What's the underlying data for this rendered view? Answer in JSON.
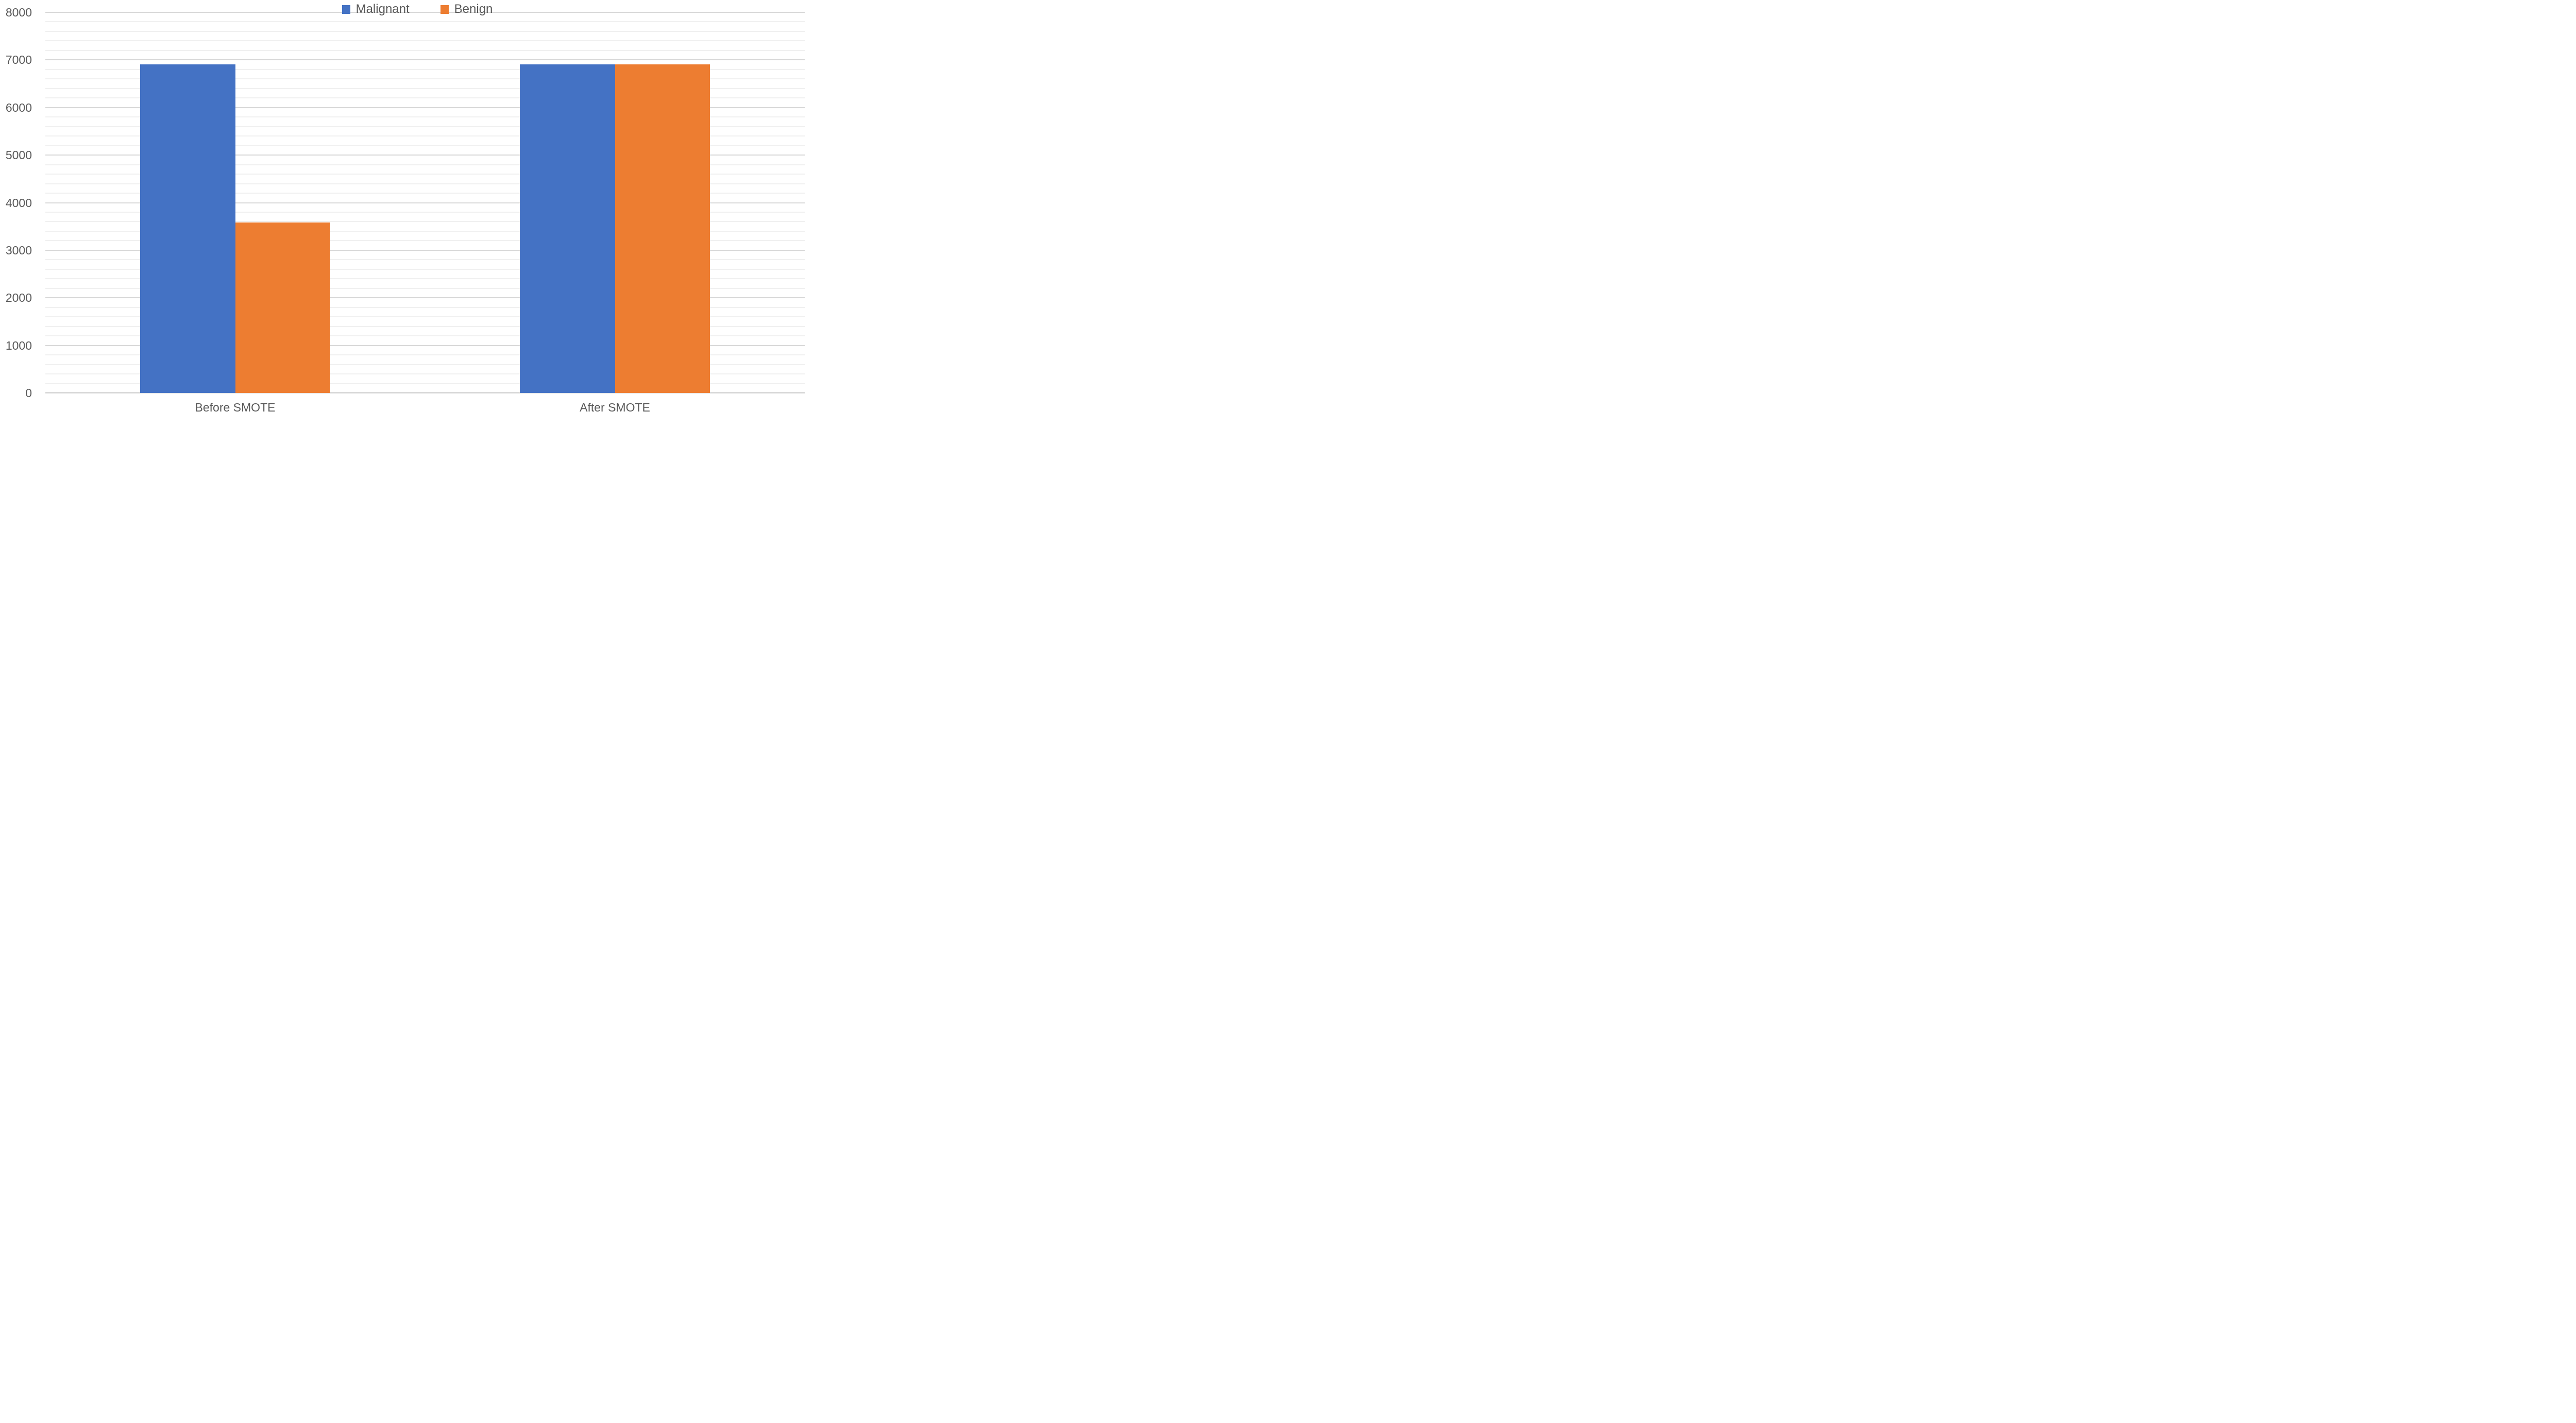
{
  "chart_data": {
    "type": "bar",
    "title": "",
    "xlabel": "",
    "ylabel": "",
    "categories": [
      "Before SMOTE",
      "After SMOTE"
    ],
    "series": [
      {
        "name": "Malignant",
        "color": "#4472C4",
        "values": [
          6910,
          6910
        ]
      },
      {
        "name": "Benign",
        "color": "#ED7D31",
        "values": [
          3580,
          6910
        ]
      }
    ],
    "ylim": [
      0,
      8000
    ],
    "y_major_unit": 1000,
    "y_minor_unit": 200,
    "y_tick_labels": [
      "0",
      "1000",
      "2000",
      "3000",
      "4000",
      "5000",
      "6000",
      "7000",
      "8000"
    ],
    "grid": "horizontal major and minor gridlines on",
    "legend_position": "top-center"
  },
  "styles": {
    "text_color": "#595959",
    "major_gridline_color": "#D8D8D8",
    "minor_gridline_color": "#F0F0F0",
    "axis_line_color": "#D8D8D8",
    "background": "#FFFFFF"
  }
}
